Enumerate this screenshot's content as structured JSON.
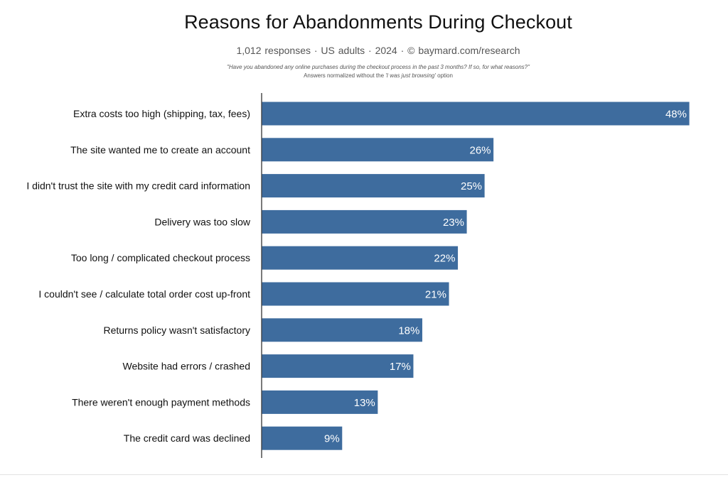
{
  "chart_data": {
    "type": "bar",
    "orientation": "horizontal",
    "title": "Reasons for Abandonments During Checkout",
    "subtitle": "1,012 responses  ·  US adults  ·  2024  ·  ©  baymard.com/research",
    "question": "\"Have you abandoned any online purchases during the checkout process in the past 3 months? If so, for what reasons?\"",
    "note_prefix": "Answers normalized without the ",
    "note_emphasis": "'I was just browsing'",
    "note_suffix": " option",
    "categories": [
      "Extra costs too high (shipping, tax, fees)",
      "The site wanted me to create an account",
      "I didn't trust the site with my credit card information",
      "Delivery was too slow",
      "Too long / complicated checkout process",
      "I couldn't see / calculate total order cost up-front",
      "Returns policy wasn't satisfactory",
      "Website had errors / crashed",
      "There weren't enough payment methods",
      "The credit card was declined"
    ],
    "values": [
      48,
      26,
      25,
      23,
      22,
      21,
      18,
      17,
      13,
      9
    ],
    "value_labels": [
      "48%",
      "26%",
      "25%",
      "23%",
      "22%",
      "21%",
      "18%",
      "17%",
      "13%",
      "9%"
    ],
    "unit": "%",
    "xlim": [
      0,
      48
    ],
    "grid": false,
    "legend": "none",
    "colors": {
      "bar": "#3e6c9e",
      "axis": "#222222",
      "value_label": "#ffffff"
    }
  }
}
